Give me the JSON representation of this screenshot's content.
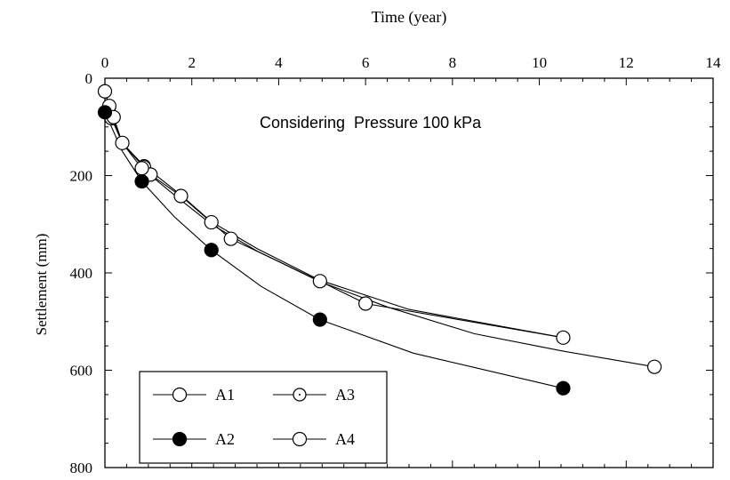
{
  "chart_data": {
    "type": "line",
    "title": "",
    "annotation": "Considering  Pressure 100 kPa",
    "xlabel": "Time (year)",
    "ylabel": "Settlement (mm)",
    "xlim": [
      0,
      14
    ],
    "ylim": [
      0,
      800
    ],
    "y_inverted": true,
    "x_axis_position": "top",
    "xticks": [
      0,
      2,
      4,
      6,
      8,
      10,
      12,
      14
    ],
    "yticks": [
      0,
      200,
      400,
      600,
      800
    ],
    "grid": false,
    "legend_position": "bottom-left",
    "series": [
      {
        "name": "A1",
        "marker": "open-circle-large",
        "x": [
          0.0,
          0.1,
          0.15,
          0.4,
          0.9,
          1.05,
          1.75,
          2.45,
          2.9,
          4.95,
          6.0,
          10.55
        ],
        "y": [
          27,
          57,
          82,
          133,
          183,
          198,
          242,
          296,
          330,
          417,
          463,
          533
        ]
      },
      {
        "name": "A2",
        "marker": "filled-circle",
        "x": [
          0.0,
          0.85,
          2.45,
          4.95,
          10.55
        ],
        "y": [
          70,
          212,
          353,
          496,
          637
        ],
        "curve_x": [
          0.0,
          0.1,
          0.2,
          0.4,
          0.85,
          1.6,
          2.45,
          3.6,
          4.95,
          7.1,
          10.55
        ],
        "curve_y": [
          70,
          90,
          110,
          150,
          212,
          285,
          353,
          428,
          496,
          565,
          637
        ]
      },
      {
        "name": "A3",
        "marker": "open-circle-small",
        "x": [
          0.1,
          0.9
        ],
        "y": [
          60,
          180
        ],
        "curve_x": [
          0.0,
          0.1,
          0.2,
          0.4,
          0.9,
          1.75,
          2.45,
          3.5,
          4.95,
          7.0,
          10.55
        ],
        "curve_y": [
          27,
          60,
          88,
          133,
          180,
          240,
          295,
          350,
          415,
          475,
          533
        ]
      },
      {
        "name": "A4",
        "marker": "open-circle-large",
        "x": [
          0.2,
          0.85,
          12.65
        ],
        "y": [
          80,
          185,
          593
        ],
        "curve_x": [
          0.2,
          0.4,
          0.85,
          1.6,
          2.45,
          3.5,
          4.95,
          6.5,
          8.5,
          10.5,
          12.65
        ],
        "curve_y": [
          80,
          133,
          185,
          240,
          300,
          355,
          418,
          470,
          525,
          560,
          593
        ]
      }
    ]
  }
}
